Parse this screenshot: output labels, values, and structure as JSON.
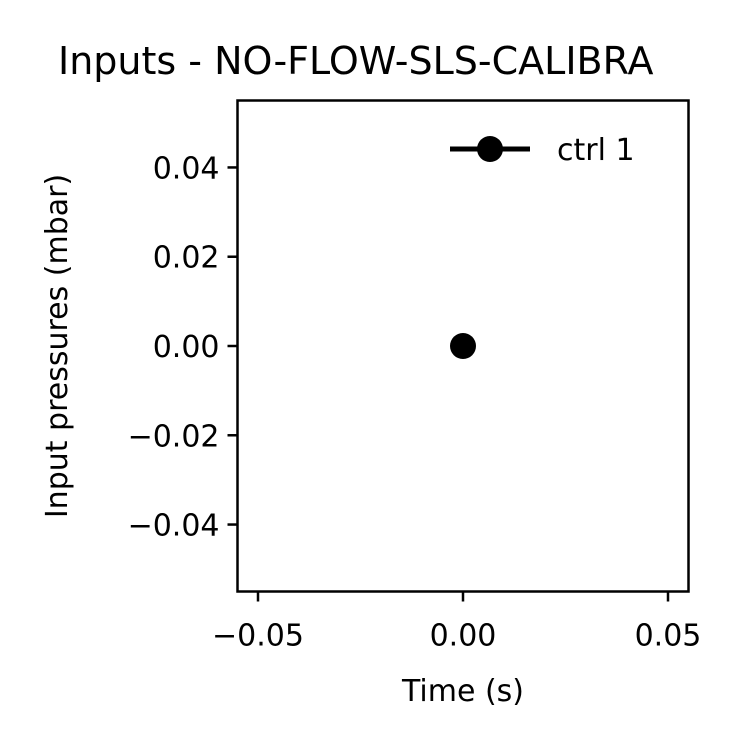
{
  "chart_data": {
    "type": "line",
    "title": "Inputs - NO-FLOW-SLS-CALIBRA",
    "xlabel": "Time (s)",
    "ylabel": "Input pressures (mbar)",
    "xlim": [
      -0.055,
      0.055
    ],
    "ylim": [
      -0.055,
      0.055
    ],
    "xticks": [
      -0.05,
      0.0,
      0.05
    ],
    "xtick_labels": [
      "−0.05",
      "0.00",
      "0.05"
    ],
    "yticks": [
      0.04,
      0.02,
      0.0,
      -0.02,
      -0.04
    ],
    "ytick_labels": [
      "0.04",
      "0.02",
      "0.00",
      "−0.02",
      "−0.04"
    ],
    "grid": false,
    "legend_position": "top-right",
    "series": [
      {
        "name": "ctrl 1",
        "color": "#000000",
        "marker": "circle",
        "x": [
          0.0
        ],
        "y": [
          0.0
        ]
      }
    ]
  }
}
